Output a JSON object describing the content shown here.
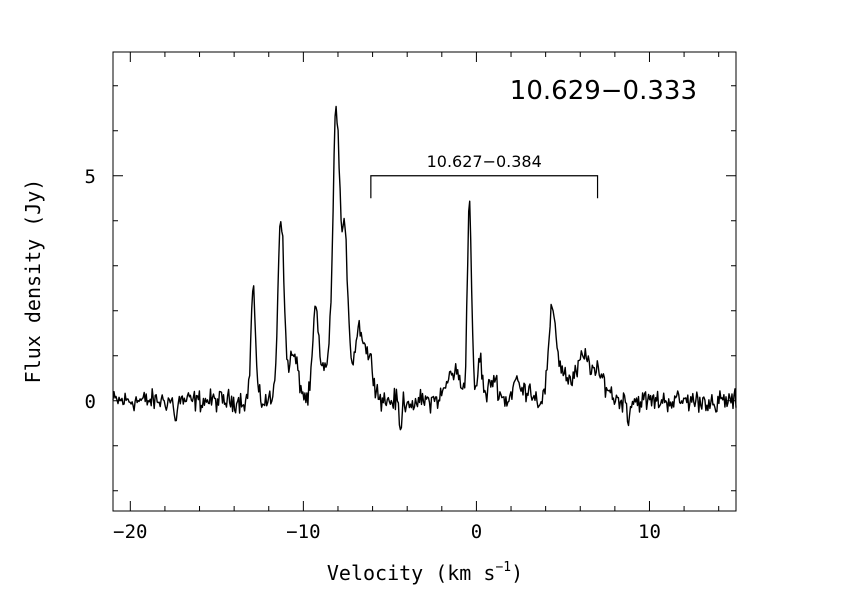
{
  "chart_data": {
    "type": "line",
    "title": "10.629−0.333",
    "xlabel": "Velocity (km s",
    "xlabel_sup": "−1",
    "xlabel_close": ")",
    "ylabel": "Flux density (Jy)",
    "xlim": [
      -21,
      15
    ],
    "ylim": [
      -2.45,
      7.75
    ],
    "xticks": [
      {
        "value": -20,
        "label": "−20"
      },
      {
        "value": -10,
        "label": "−10"
      },
      {
        "value": 0,
        "label": "0"
      },
      {
        "value": 10,
        "label": "10"
      }
    ],
    "yticks": [
      {
        "value": 0,
        "label": "0"
      },
      {
        "value": 5,
        "label": "5"
      }
    ],
    "annotation": {
      "label": "10.627−0.384",
      "x_start": -6.1,
      "x_end": 7.0,
      "y_top": 5.0,
      "y_bottom": 4.5
    },
    "peaks": [
      {
        "x": -12.9,
        "y": 2.5,
        "w": 0.13
      },
      {
        "x": -11.3,
        "y": 4.1,
        "w": 0.17
      },
      {
        "x": -10.6,
        "y": 1.0,
        "w": 0.3
      },
      {
        "x": -9.3,
        "y": 1.95,
        "w": 0.16
      },
      {
        "x": -8.7,
        "y": 0.8,
        "w": 0.3
      },
      {
        "x": -8.1,
        "y": 6.3,
        "w": 0.19
      },
      {
        "x": -7.6,
        "y": 3.5,
        "w": 0.2
      },
      {
        "x": -6.8,
        "y": 1.55,
        "w": 0.26
      },
      {
        "x": -6.2,
        "y": 0.9,
        "w": 0.28
      },
      {
        "x": -1.3,
        "y": 0.65,
        "w": 0.4
      },
      {
        "x": -0.4,
        "y": 4.4,
        "w": 0.12
      },
      {
        "x": 0.2,
        "y": 0.95,
        "w": 0.13
      },
      {
        "x": 1.0,
        "y": 0.5,
        "w": 0.25
      },
      {
        "x": 2.3,
        "y": 0.45,
        "w": 0.2
      },
      {
        "x": 3.0,
        "y": 0.3,
        "w": 0.25
      },
      {
        "x": 4.4,
        "y": 1.95,
        "w": 0.22
      },
      {
        "x": 5.0,
        "y": 0.6,
        "w": 0.3
      },
      {
        "x": 6.2,
        "y": 0.95,
        "w": 0.45
      },
      {
        "x": 7.2,
        "y": 0.45,
        "w": 0.4
      }
    ],
    "dips": [
      {
        "x": -17.4,
        "y": -0.55
      },
      {
        "x": -4.4,
        "y": -0.75
      },
      {
        "x": -3.6,
        "y": -0.4
      },
      {
        "x": 8.8,
        "y": -0.45
      },
      {
        "x": 13.8,
        "y": -0.4
      }
    ],
    "noise_rms": 0.17,
    "grid": false
  },
  "colors": {
    "line": "#000000",
    "background": "#ffffff"
  }
}
